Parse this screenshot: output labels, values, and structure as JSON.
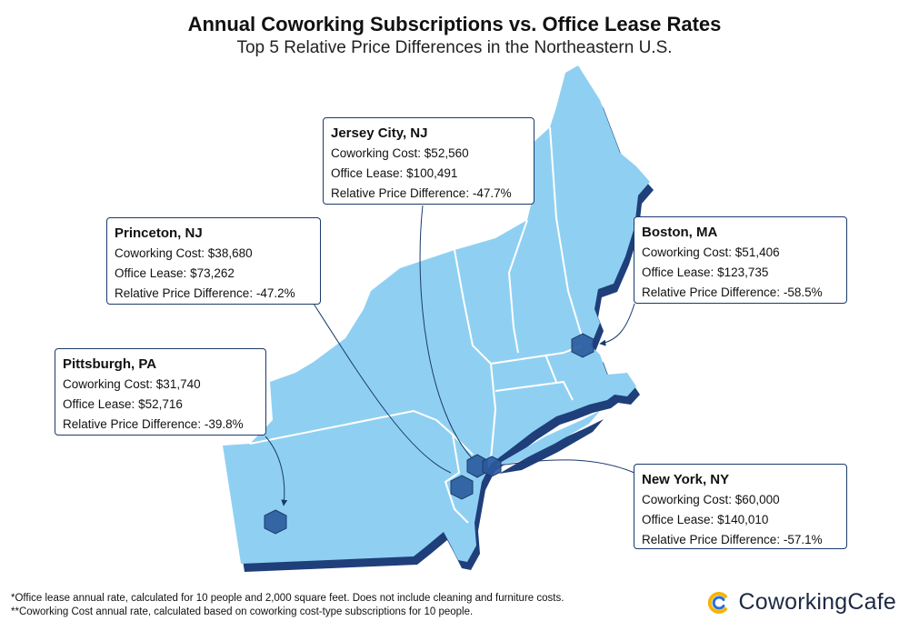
{
  "header": {
    "title": "Annual Coworking Subscriptions vs. Office Lease Rates",
    "subtitle": "Top 5 Relative Price Differences in the Northeastern U.S."
  },
  "colors": {
    "land": "#8fd0f2",
    "land_shadow": "#1f3f7a",
    "marker": "#2a5a9c",
    "callout_border": "#1b3a6b"
  },
  "labels": {
    "cowork_prefix": "Coworking Cost: ",
    "lease_prefix": "Office Lease: ",
    "diff_prefix": "Relative Price Difference: "
  },
  "cities": [
    {
      "name": "Jersey City, NJ",
      "coworking": "$52,560",
      "lease": "$100,491",
      "difference": "-47.7%"
    },
    {
      "name": "Princeton, NJ",
      "coworking": "$38,680",
      "lease": "$73,262",
      "difference": "-47.2%"
    },
    {
      "name": "Boston, MA",
      "coworking": "$51,406",
      "lease": "$123,735",
      "difference": "-58.5%"
    },
    {
      "name": "Pittsburgh, PA",
      "coworking": "$31,740",
      "lease": "$52,716",
      "difference": "-39.8%"
    },
    {
      "name": "New York, NY",
      "coworking": "$60,000",
      "lease": "$140,010",
      "difference": "-57.1%"
    }
  ],
  "footnotes": [
    "*Office lease annual rate, calculated for 10 people and 2,000 square feet. Does not include cleaning and furniture costs.",
    "**Coworking Cost annual rate, calculated based on coworking cost-type subscriptions for 10 people."
  ],
  "logo": {
    "text": "CoworkingCafe",
    "icon": "coworkingcafe-logo-icon"
  }
}
